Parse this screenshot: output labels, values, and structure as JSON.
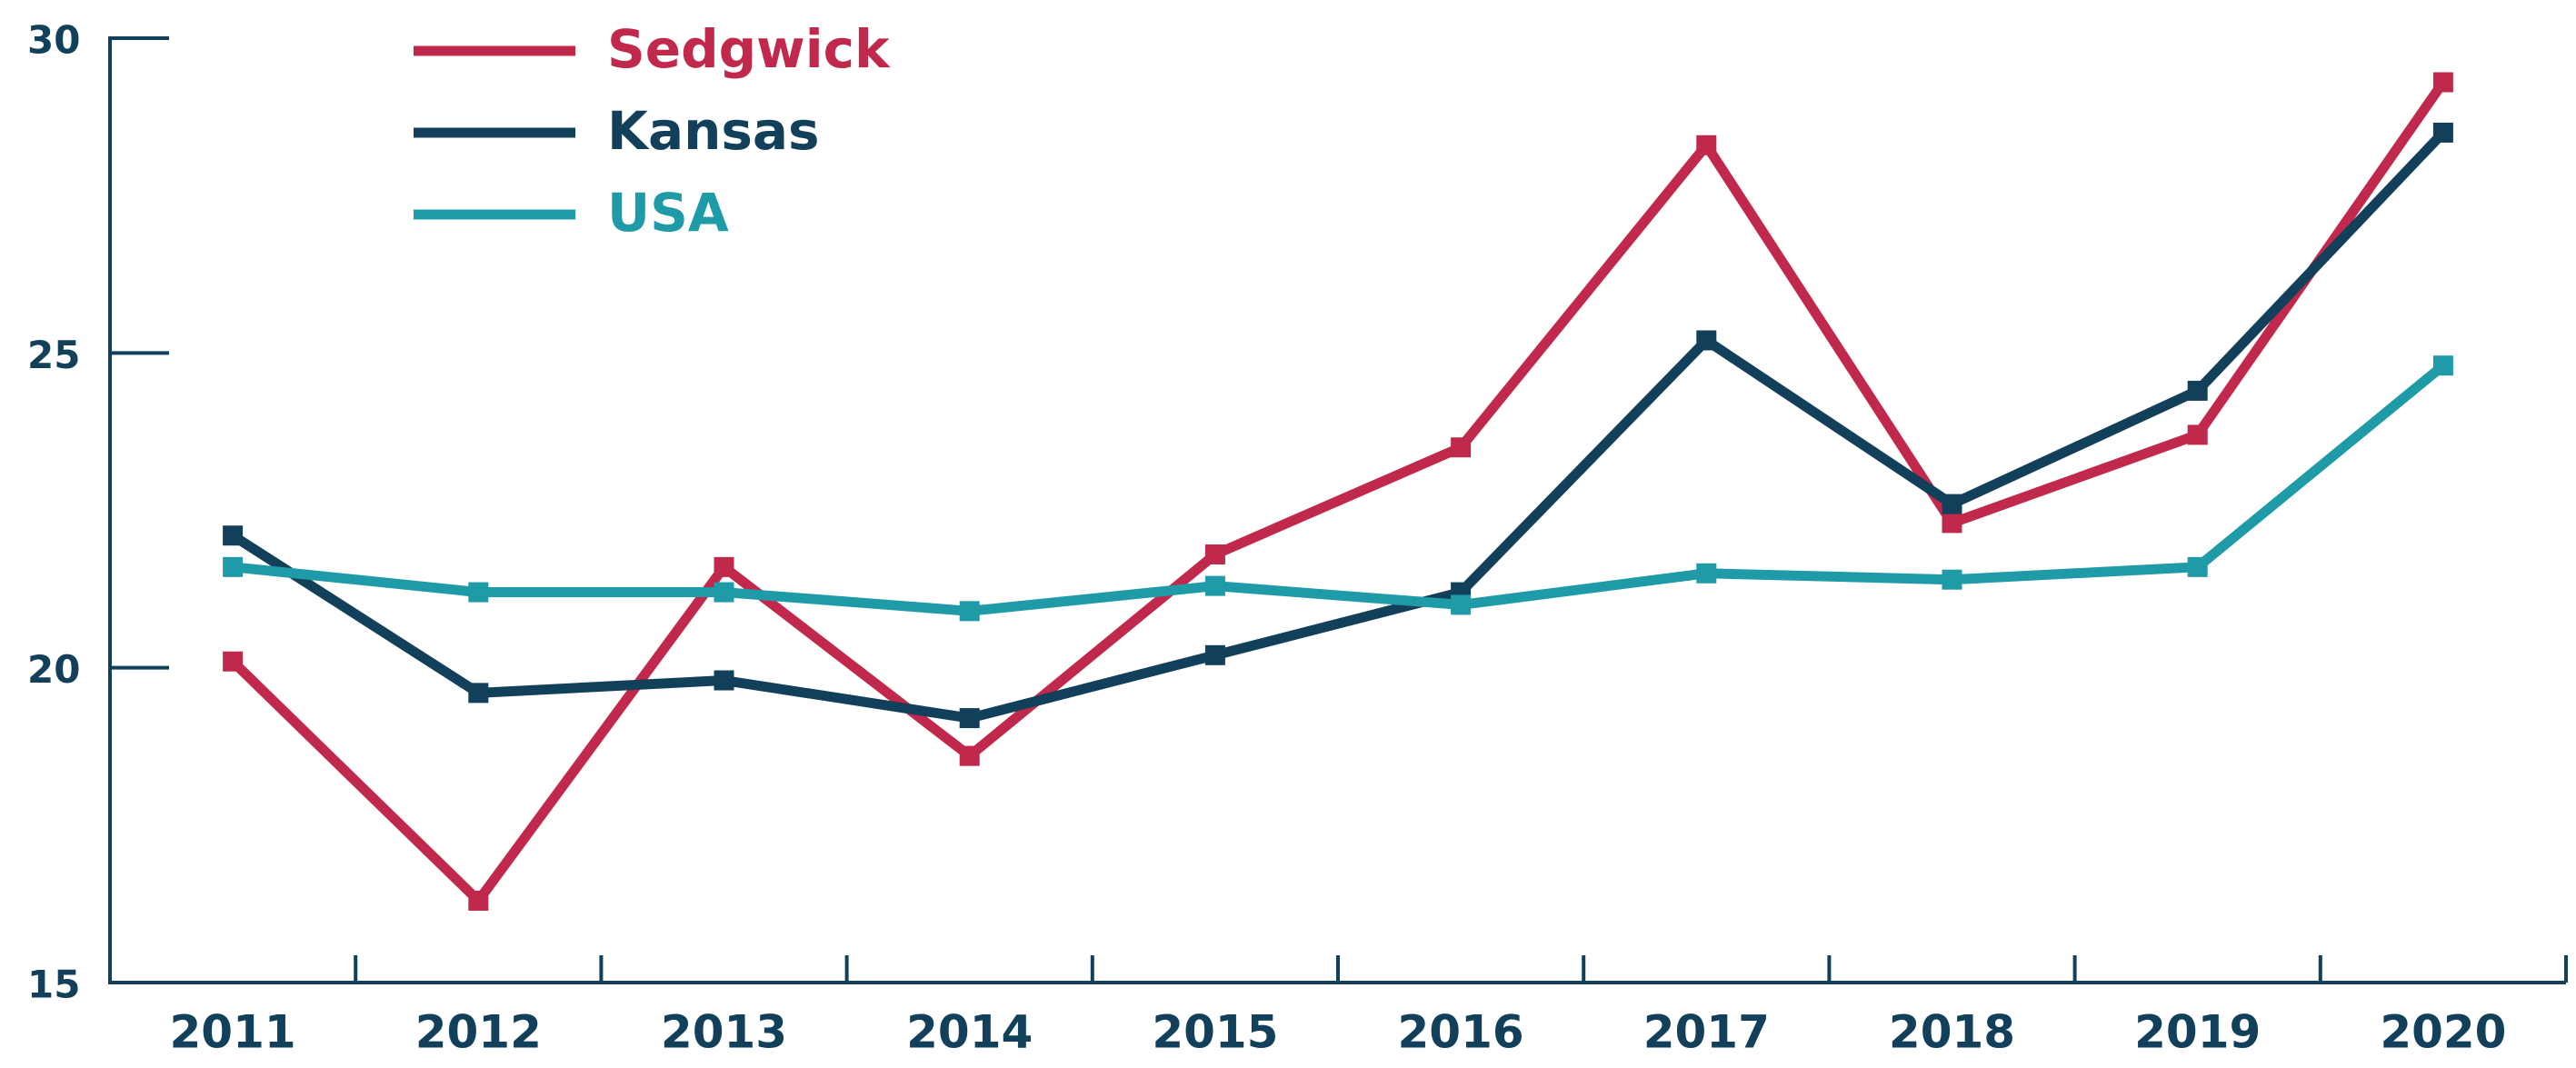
{
  "chart_data": {
    "type": "line",
    "categories": [
      "2011",
      "2012",
      "2013",
      "2014",
      "2015",
      "2016",
      "2017",
      "2018",
      "2019",
      "2020"
    ],
    "series": [
      {
        "name": "Sedgwick",
        "color": "#c0294b",
        "values": [
          20.1,
          16.3,
          21.6,
          18.6,
          21.8,
          23.5,
          28.3,
          22.3,
          23.7,
          29.3
        ]
      },
      {
        "name": "Kansas",
        "color": "#12405a",
        "values": [
          22.1,
          19.6,
          19.8,
          19.2,
          20.2,
          21.2,
          25.2,
          22.6,
          24.4,
          28.5
        ]
      },
      {
        "name": "USA",
        "color": "#1e9ba6",
        "values": [
          21.6,
          21.2,
          21.2,
          20.9,
          21.3,
          21.0,
          21.5,
          21.4,
          21.6,
          24.8
        ]
      }
    ],
    "ylim": [
      15,
      30
    ],
    "yticks": [
      15,
      20,
      25,
      30
    ],
    "legend": "top-left"
  }
}
